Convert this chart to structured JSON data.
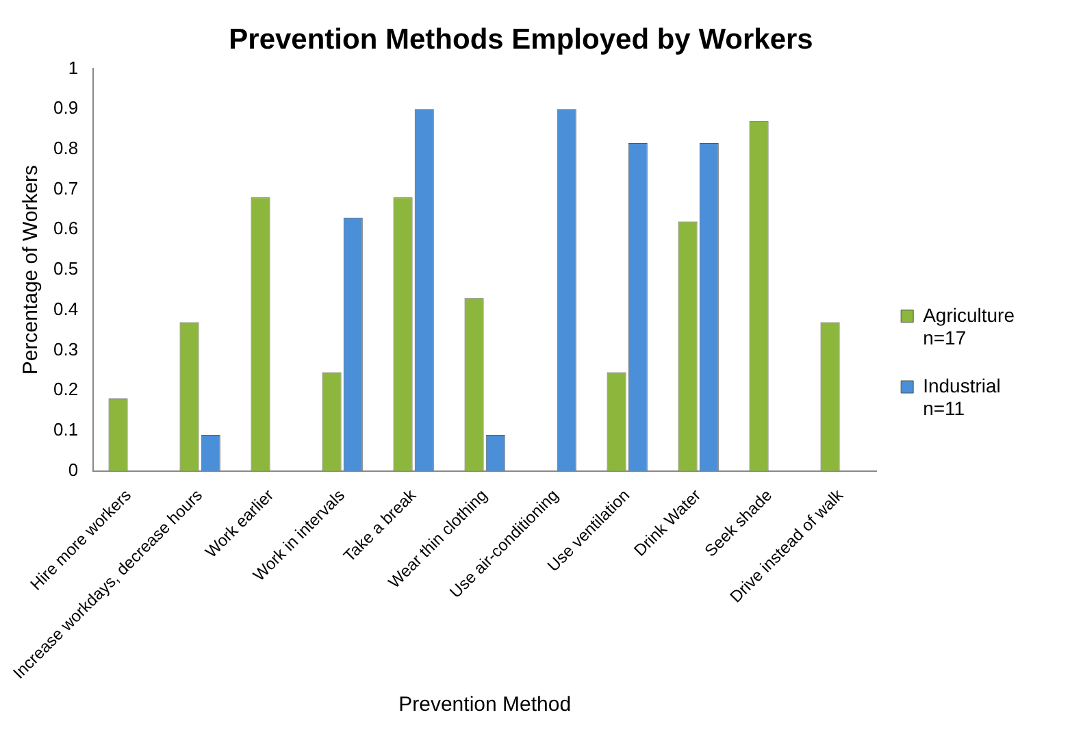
{
  "chart_data": {
    "type": "bar",
    "title": "Prevention Methods Employed by Workers",
    "xlabel": "Prevention Method",
    "ylabel": "Percentage of Workers",
    "categories": [
      "Hire more workers",
      "Increase workdays, decrease hours",
      "Work earlier",
      "Work in intervals",
      "Take a break",
      "Wear thin clothing",
      "Use air-conditioning",
      "Use ventilation",
      "Drink Water",
      "Seek shade",
      "Drive instead of walk"
    ],
    "series": [
      {
        "name": "Agriculture n=17",
        "color": "#8cb63c",
        "values": [
          0.18,
          0.37,
          0.68,
          0.245,
          0.68,
          0.43,
          0,
          0.245,
          0.62,
          0.87,
          0.37
        ]
      },
      {
        "name": "Industrial n=11",
        "color": "#4a8fd8",
        "values": [
          0,
          0.09,
          0,
          0.63,
          0.9,
          0.09,
          0.9,
          0.815,
          0.815,
          0,
          0
        ]
      }
    ],
    "ylim": [
      0,
      1
    ],
    "yticks": [
      0,
      0.1,
      0.2,
      0.3,
      0.4,
      0.5,
      0.6,
      0.7,
      0.8,
      0.9,
      1
    ],
    "grid": false,
    "legend": "right"
  }
}
